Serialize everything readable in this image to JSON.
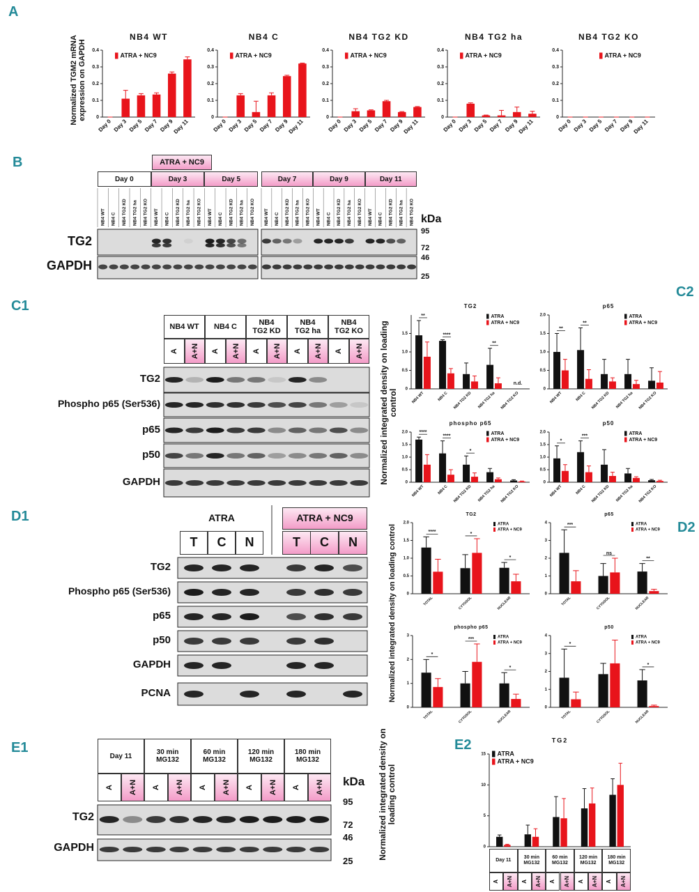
{
  "panel_labels": {
    "A": "A",
    "B": "B",
    "C1": "C1",
    "C2": "C2",
    "D1": "D1",
    "D2": "D2",
    "E1": "E1",
    "E2": "E2"
  },
  "axis_labels": {
    "A": "Normalized TGM2 mRNA expression on GAPDH",
    "C2": "Normalized integrated density on loading control",
    "D2": "Normalized integrated density on loading control",
    "E2": "Normalized integrated density on loading control"
  },
  "chart_data": [
    {
      "type": "bar",
      "title": "NB4 WT",
      "categories": [
        "Day 0",
        "Day 3",
        "Day 5",
        "Day 7",
        "Day 9",
        "Day 11"
      ],
      "series": [
        {
          "name": "ATRA + NC9",
          "color": "#e8141b",
          "values": [
            0,
            0.11,
            0.13,
            0.135,
            0.26,
            0.345
          ],
          "errors": [
            0,
            0.05,
            0.01,
            0.01,
            0.01,
            0.015
          ]
        }
      ],
      "ylim": [
        0,
        0.4
      ],
      "yticks": [
        0,
        0.1,
        0.2,
        0.3,
        0.4
      ],
      "legend": "upper left"
    },
    {
      "type": "bar",
      "title": "NB4 C",
      "categories": [
        "Day 0",
        "Day 3",
        "Day 5",
        "Day 7",
        "Day 9",
        "Day 11"
      ],
      "series": [
        {
          "name": "ATRA + NC9",
          "color": "#e8141b",
          "values": [
            0,
            0.13,
            0.03,
            0.13,
            0.245,
            0.32
          ],
          "errors": [
            0,
            0.01,
            0.065,
            0.015,
            0.005,
            0.003
          ]
        }
      ],
      "ylim": [
        0,
        0.4
      ],
      "yticks": [
        0,
        0.1,
        0.2,
        0.3,
        0.4
      ],
      "legend": "upper left"
    },
    {
      "type": "bar",
      "title": "NB4 TG2 KD",
      "categories": [
        "Day 0",
        "Day 3",
        "Day 5",
        "Day 7",
        "Day 9",
        "Day 11"
      ],
      "series": [
        {
          "name": "ATRA + NC9",
          "color": "#e8141b",
          "values": [
            0,
            0.035,
            0.04,
            0.095,
            0.03,
            0.06
          ],
          "errors": [
            0,
            0.015,
            0.003,
            0.005,
            0.003,
            0.003
          ]
        }
      ],
      "ylim": [
        0,
        0.4
      ],
      "yticks": [
        0,
        0.1,
        0.2,
        0.3,
        0.4
      ],
      "legend": "upper left"
    },
    {
      "type": "bar",
      "title": "NB4 TG2 ha",
      "categories": [
        "Day 0",
        "Day 3",
        "Day 5",
        "Day 7",
        "Day 9",
        "Day 11"
      ],
      "series": [
        {
          "name": "ATRA + NC9",
          "color": "#e8141b",
          "values": [
            0,
            0.08,
            0.01,
            0.01,
            0.03,
            0.02
          ],
          "errors": [
            0,
            0.005,
            0.002,
            0.03,
            0.03,
            0.015
          ]
        }
      ],
      "ylim": [
        0,
        0.4
      ],
      "yticks": [
        0,
        0.1,
        0.2,
        0.3,
        0.4
      ],
      "legend": "upper left"
    },
    {
      "type": "bar",
      "title": "NB4 TG2 KO",
      "categories": [
        "Day 0",
        "Day 3",
        "Day 5",
        "Day 7",
        "Day 9",
        "Day 11"
      ],
      "series": [
        {
          "name": "ATRA + NC9",
          "color": "#e8141b",
          "values": [
            0,
            0,
            0,
            0,
            0,
            0
          ],
          "errors": [
            0,
            0,
            0,
            0,
            0,
            0
          ]
        }
      ],
      "ylim": [
        0,
        0.4
      ],
      "yticks": [
        0,
        0.1,
        0.2,
        0.3,
        0.4
      ],
      "legend": "upper right"
    },
    {
      "type": "bar",
      "title": "TG2",
      "categories": [
        "NB4 WT",
        "NB4 C",
        "NB4 TG2 KD",
        "NB4 TG2 ha",
        "NB4 TG2 KO"
      ],
      "series": [
        {
          "name": "ATRA",
          "color": "#111111",
          "values": [
            1.45,
            1.3,
            0.4,
            0.65,
            null
          ],
          "errors": [
            0.4,
            0.03,
            0.3,
            0.45,
            null
          ]
        },
        {
          "name": "ATRA + NC9",
          "color": "#e8141b",
          "values": [
            0.87,
            0.42,
            0.2,
            0.15,
            null
          ],
          "errors": [
            0.4,
            0.13,
            0.15,
            0.15,
            null
          ]
        }
      ],
      "annotations": [
        "**",
        "****",
        null,
        "**",
        "n.d."
      ],
      "ylim": [
        0,
        2
      ],
      "yticks": [
        0,
        0.5,
        {
          "value": 1,
          "label": "1.0"
        },
        1.5
      ],
      "legend": "upper right"
    },
    {
      "type": "bar",
      "title": "p65",
      "categories": [
        "NB4 WT",
        "NB4 C",
        "NB4 TG2 KD",
        "NB4 TG2 ha",
        "NB4 TG2 KO"
      ],
      "series": [
        {
          "name": "ATRA",
          "color": "#111111",
          "values": [
            1.0,
            1.05,
            0.4,
            0.4,
            0.22
          ],
          "errors": [
            0.5,
            0.6,
            0.4,
            0.4,
            0.35
          ]
        },
        {
          "name": "ATRA + NC9",
          "color": "#e8141b",
          "values": [
            0.5,
            0.27,
            0.2,
            0.13,
            0.17
          ],
          "errors": [
            0.3,
            0.25,
            0.1,
            0.1,
            0.3
          ]
        }
      ],
      "annotations": [
        "**",
        "**",
        null,
        null,
        null
      ],
      "ylim": [
        0,
        2
      ],
      "yticks": [
        0,
        0.5,
        {
          "value": 1,
          "label": "1.0"
        },
        1.5,
        {
          "value": 2,
          "label": "2.0"
        }
      ],
      "legend": "upper right"
    },
    {
      "type": "bar",
      "title": "phospho p65",
      "categories": [
        "NB4 WT",
        "NB4 C",
        "NB4 TG2 KD",
        "NB4 TG2 ha",
        "NB4 TG2 KO"
      ],
      "series": [
        {
          "name": "ATRA",
          "color": "#111111",
          "values": [
            1.7,
            1.15,
            0.7,
            0.4,
            0.07
          ],
          "errors": [
            0.1,
            0.5,
            0.35,
            0.15,
            0.03
          ]
        },
        {
          "name": "ATRA + NC9",
          "color": "#e8141b",
          "values": [
            0.7,
            0.3,
            0.22,
            0.12,
            0.03
          ],
          "errors": [
            0.4,
            0.2,
            0.15,
            0.05,
            0.02
          ]
        }
      ],
      "annotations": [
        "****",
        "****",
        "*",
        null,
        null
      ],
      "ylim": [
        0,
        2
      ],
      "yticks": [
        0,
        0.5,
        {
          "value": 1,
          "label": "1.0"
        },
        1.5,
        {
          "value": 2,
          "label": "2.0"
        }
      ],
      "legend": "upper right"
    },
    {
      "type": "bar",
      "title": "p50",
      "categories": [
        "NB4 WT",
        "NB4 C",
        "NB4 TG2 KD",
        "NB4 TG2 ha",
        "NB4 TG2 KO"
      ],
      "series": [
        {
          "name": "ATRA",
          "color": "#111111",
          "values": [
            0.95,
            1.2,
            0.7,
            0.35,
            0.08
          ],
          "errors": [
            0.5,
            0.45,
            0.6,
            0.2,
            0.03
          ]
        },
        {
          "name": "ATRA + NC9",
          "color": "#e8141b",
          "values": [
            0.45,
            0.4,
            0.25,
            0.17,
            0.05
          ],
          "errors": [
            0.25,
            0.25,
            0.15,
            0.05,
            0.03
          ]
        }
      ],
      "annotations": [
        "*",
        "***",
        null,
        null,
        null
      ],
      "ylim": [
        0,
        2
      ],
      "yticks": [
        0,
        0.5,
        {
          "value": 1,
          "label": "1.0"
        },
        1.5,
        {
          "value": 2,
          "label": "2.0"
        }
      ],
      "legend": "upper right"
    },
    {
      "type": "bar",
      "title": "TG2",
      "categories": [
        "TOTAL",
        "CYTOSOL",
        "NUCLEAR"
      ],
      "series": [
        {
          "name": "ATRA",
          "color": "#111111",
          "values": [
            1.3,
            0.72,
            0.73
          ],
          "errors": [
            0.3,
            0.38,
            0.15
          ]
        },
        {
          "name": "ATRA + NC9",
          "color": "#e8141b",
          "values": [
            0.62,
            1.15,
            0.35
          ],
          "errors": [
            0.35,
            0.4,
            0.2
          ]
        }
      ],
      "annotations": [
        "****",
        "*",
        "*"
      ],
      "ylim": [
        0,
        2
      ],
      "yticks": [
        0,
        0.5,
        {
          "value": 1,
          "label": "1.0"
        },
        1.5,
        {
          "value": 2,
          "label": "2.0"
        }
      ],
      "legend": "upper right"
    },
    {
      "type": "bar",
      "title": "p65",
      "categories": [
        "TOTAL",
        "CYTOSOL",
        "NUCLEAR"
      ],
      "series": [
        {
          "name": "ATRA",
          "color": "#111111",
          "values": [
            2.3,
            1.0,
            1.25
          ],
          "errors": [
            1.3,
            0.7,
            0.45
          ]
        },
        {
          "name": "ATRA + NC9",
          "color": "#e8141b",
          "values": [
            0.7,
            1.2,
            0.15
          ],
          "errors": [
            0.6,
            0.8,
            0.1
          ]
        }
      ],
      "annotations": [
        "***",
        "ns",
        "**"
      ],
      "ylim": [
        0,
        4
      ],
      "yticks": [
        0,
        1,
        2,
        3,
        4
      ],
      "legend": "upper right"
    },
    {
      "type": "bar",
      "title": "phospho p65",
      "categories": [
        "TOTAL",
        "CYTOSOL",
        "NUCLEAR"
      ],
      "series": [
        {
          "name": "ATRA",
          "color": "#111111",
          "values": [
            1.45,
            1.0,
            1.0
          ],
          "errors": [
            0.55,
            0.5,
            0.45
          ]
        },
        {
          "name": "ATRA + NC9",
          "color": "#e8141b",
          "values": [
            0.85,
            1.9,
            0.35
          ],
          "errors": [
            0.35,
            0.75,
            0.2
          ]
        }
      ],
      "annotations": [
        "*",
        "***",
        "*"
      ],
      "ylim": [
        0,
        3
      ],
      "yticks": [
        0,
        1,
        2,
        3
      ],
      "legend": "upper right"
    },
    {
      "type": "bar",
      "title": "p50",
      "categories": [
        "TOTAL",
        "CYTOSOL",
        "NUCLEAR"
      ],
      "series": [
        {
          "name": "ATRA",
          "color": "#111111",
          "values": [
            1.65,
            1.85,
            1.5
          ],
          "errors": [
            1.6,
            0.6,
            0.6
          ]
        },
        {
          "name": "ATRA + NC9",
          "color": "#e8141b",
          "values": [
            0.45,
            2.45,
            0.07
          ],
          "errors": [
            0.4,
            1.3,
            0.05
          ]
        }
      ],
      "annotations": [
        "*",
        null,
        "*"
      ],
      "ylim": [
        0,
        4
      ],
      "yticks": [
        0,
        1,
        2,
        3,
        4
      ],
      "legend": "upper right"
    },
    {
      "type": "bar",
      "title": "TG2",
      "categories": [
        "Day 11",
        "30 min MG132",
        "60 min MG132",
        "120 min MG132",
        "180 min MG132"
      ],
      "series": [
        {
          "name": "ATRA",
          "color": "#111111",
          "values": [
            1.6,
            2.0,
            4.8,
            6.2,
            8.4
          ],
          "errors": [
            0.3,
            1.5,
            3.3,
            3.2,
            2.6
          ]
        },
        {
          "name": "ATRA + NC9",
          "color": "#e8141b",
          "values": [
            0.3,
            1.6,
            4.6,
            7.0,
            10.0
          ],
          "errors": [
            0.1,
            1.3,
            3.2,
            2.5,
            3.5
          ]
        }
      ],
      "ylim": [
        0,
        15
      ],
      "yticks": [
        0,
        5,
        10,
        15
      ],
      "legend": "upper left"
    }
  ],
  "blot_b": {
    "treatment": "ATRA + NC9",
    "days": [
      "Day 0",
      "Day 3",
      "Day 5",
      "Day 7",
      "Day 9",
      "Day 11"
    ],
    "cell_lines": [
      "NB4 WT",
      "NB4 C",
      "NB4 TG2 KD",
      "NB4 TG2 ha",
      "NB4 TG2 KO"
    ],
    "rows": [
      "TG2",
      "GAPDH"
    ],
    "kda_label": "kDa",
    "kda": [
      95,
      72,
      46,
      25
    ]
  },
  "blot_c1": {
    "cell_lines": [
      "NB4 WT",
      "NB4 C",
      "NB4 TG2 KD",
      "NB4 TG2 ha",
      "NB4 TG2 KO"
    ],
    "treatments": [
      "A",
      "A+N"
    ],
    "rows": [
      "TG2",
      "Phospho p65 (Ser536)",
      "p65",
      "p50",
      "GAPDH"
    ]
  },
  "blot_d1": {
    "treatments": [
      "ATRA",
      "ATRA + NC9"
    ],
    "fractions": [
      "T",
      "C",
      "N"
    ],
    "rows": [
      "TG2",
      "Phospho p65 (Ser536)",
      "p65",
      "p50",
      "GAPDH",
      "PCNA"
    ]
  },
  "blot_e1": {
    "conditions": [
      "Day 11",
      "30 min MG132",
      "60 min MG132",
      "120 min MG132",
      "180 min MG132"
    ],
    "treatments": [
      "A",
      "A+N"
    ],
    "rows": [
      "TG2",
      "GAPDH"
    ],
    "kda_label": "kDa",
    "kda": [
      95,
      72,
      46,
      25
    ]
  },
  "e2_table": {
    "treatments": [
      "A",
      "A+N"
    ]
  }
}
